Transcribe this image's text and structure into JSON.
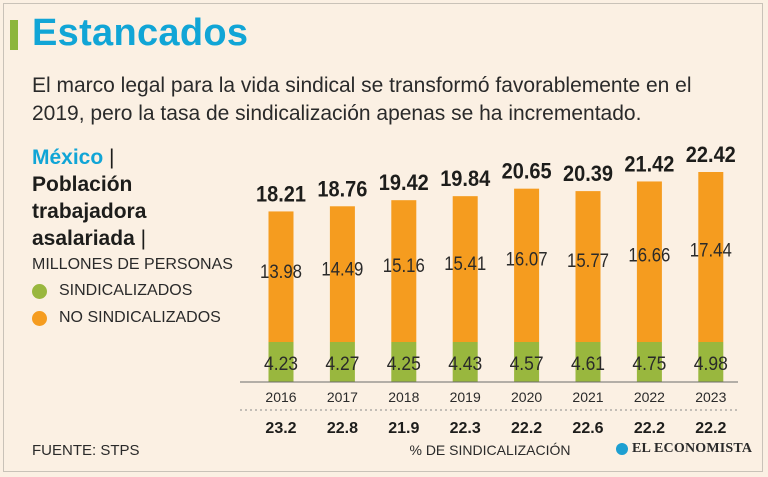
{
  "header": {
    "title": "Estancados",
    "subtitle": "El marco legal para la vida sindical se transformó favorablemente en el 2019, pero la tasa de sindicalización apenas se ha incrementado."
  },
  "sidebar": {
    "country": "México",
    "separator": "|",
    "population_label": "Población trabajadora asalariada",
    "units": "MILLONES DE PERSONAS",
    "legend": [
      {
        "label": "SINDICALIZADOS",
        "color": "#99b73e"
      },
      {
        "label": "NO SINDICALIZADOS",
        "color": "#f59c1f"
      }
    ]
  },
  "footer": {
    "source": "FUENTE: STPS",
    "logo_text": "EL ECONOMISTA"
  },
  "chart_data": {
    "type": "bar",
    "stacked": true,
    "title": "",
    "xlabel": "% DE SINDICALIZACIÓN",
    "ylabel": "MILLONES DE PERSONAS",
    "categories": [
      "2016",
      "2017",
      "2018",
      "2019",
      "2020",
      "2021",
      "2022",
      "2023"
    ],
    "series": [
      {
        "name": "SINDICALIZADOS",
        "color": "#99b73e",
        "values": [
          4.23,
          4.27,
          4.25,
          4.43,
          4.57,
          4.61,
          4.75,
          4.98
        ]
      },
      {
        "name": "NO SINDICALIZADOS",
        "color": "#f59c1f",
        "values": [
          13.98,
          14.49,
          15.16,
          15.41,
          16.07,
          15.77,
          16.66,
          17.44
        ]
      }
    ],
    "totals": [
      "18.21",
      "18.76",
      "19.42",
      "19.84",
      "20.65",
      "20.39",
      "21.42",
      "22.42"
    ],
    "labels_sindicalizados": [
      "4.23",
      "4.27",
      "4.25",
      "4.43",
      "4.57",
      "4.61",
      "4.75",
      "4.98"
    ],
    "labels_no_sindicalizados": [
      "13.98",
      "14.49",
      "15.16",
      "15.41",
      "16.07",
      "15.77",
      "16.66",
      "17.44"
    ],
    "unionization_rate": [
      "23.2",
      "22.8",
      "21.9",
      "22.3",
      "22.2",
      "22.6",
      "22.2",
      "22.2"
    ],
    "ylim": [
      0,
      22.42
    ]
  }
}
